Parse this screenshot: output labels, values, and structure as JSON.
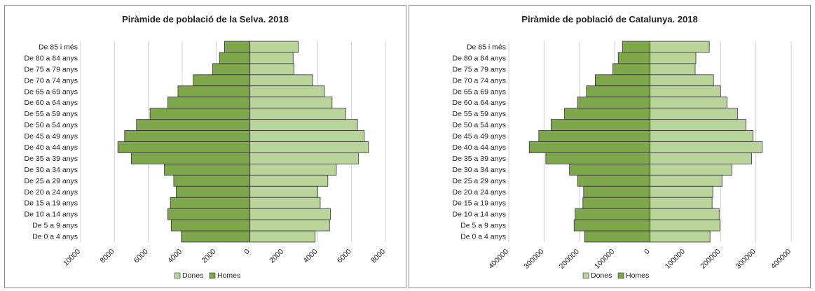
{
  "chart_data": [
    {
      "type": "bar",
      "orientation": "horizontal-pyramid",
      "title": "Piràmide de població de la Selva. 2018",
      "categories": [
        "De 85 i més",
        "De 80 a 84 anys",
        "De 75 a 79 anys",
        "De 70 a 74 anys",
        "De 65 a 69 anys",
        "De 60 a 64 anys",
        "De 55 a 59 anys",
        "De 50 a 54 anys",
        "De 45 a 49 anys",
        "De 40 a 44 anys",
        "De 35 a 39 anys",
        "De 30 a 34 anys",
        "De 25 a 29 anys",
        "De 20 a 24 anys",
        "De 15 a 19 anys",
        "De 10 a 14 anys",
        "De 5 a 9 anys",
        "De 0 a 4 anys"
      ],
      "series": [
        {
          "name": "Dones",
          "side": "right",
          "color": "#b9d59b",
          "values": [
            2850,
            2550,
            2600,
            3700,
            4400,
            4850,
            5650,
            6350,
            6750,
            7000,
            6400,
            5100,
            4600,
            4000,
            4150,
            4750,
            4700,
            3850
          ]
        },
        {
          "name": "Homes",
          "side": "left",
          "color": "#7ea64b",
          "values": [
            1500,
            1800,
            2200,
            3350,
            4250,
            4850,
            5900,
            6700,
            7400,
            7800,
            7000,
            5050,
            4500,
            4350,
            4700,
            4850,
            4650,
            4050
          ]
        }
      ],
      "xlim": [
        -10000,
        8000
      ],
      "xticks": [
        -10000,
        -8000,
        -6000,
        -4000,
        -2000,
        0,
        2000,
        4000,
        6000,
        8000
      ],
      "xtick_labels": [
        "10000",
        "8000",
        "6000",
        "4000",
        "2000",
        "0",
        "2000",
        "4000",
        "6000",
        "8000"
      ],
      "grid": "vertical",
      "legend": {
        "position": "bottom",
        "items": [
          "Dones",
          "Homes"
        ]
      }
    },
    {
      "type": "bar",
      "orientation": "horizontal-pyramid",
      "title": "Piràmide de població de Catalunya. 2018",
      "categories": [
        "De 85 i més",
        "De 80 a 84 anys",
        "De 75 a 79 anys",
        "De 70 a 74 anys",
        "De 65 a 69 anys",
        "De 60 a 64 anys",
        "De 55 a 59 anys",
        "De 50 a 54 anys",
        "De 45 a 49 anys",
        "De 40 a 44 anys",
        "De 35 a 39 anys",
        "De 30 a 34 anys",
        "De 25 a 29 anys",
        "De 20 a 24 anys",
        "De 15 a 19 anys",
        "De 10 a 14 anys",
        "De 5 a 9 anys",
        "De 0 a 4 anys"
      ],
      "series": [
        {
          "name": "Dones",
          "side": "right",
          "color": "#b9d59b",
          "values": [
            168000,
            130000,
            128000,
            180000,
            200000,
            218000,
            248000,
            272000,
            292000,
            318000,
            288000,
            232000,
            204000,
            178000,
            176000,
            196000,
            198000,
            170000
          ]
        },
        {
          "name": "Homes",
          "side": "left",
          "color": "#7ea64b",
          "values": [
            78000,
            90000,
            105000,
            155000,
            180000,
            205000,
            242000,
            280000,
            315000,
            342000,
            295000,
            228000,
            205000,
            188000,
            190000,
            212000,
            215000,
            185000
          ]
        }
      ],
      "xlim": [
        -400000,
        400000
      ],
      "xticks": [
        -400000,
        -300000,
        -200000,
        -100000,
        0,
        100000,
        200000,
        300000,
        400000
      ],
      "xtick_labels": [
        "400000",
        "300000",
        "200000",
        "100000",
        "0",
        "100000",
        "200000",
        "300000",
        "400000"
      ],
      "grid": "vertical",
      "legend": {
        "position": "bottom",
        "items": [
          "Dones",
          "Homes"
        ]
      }
    }
  ]
}
